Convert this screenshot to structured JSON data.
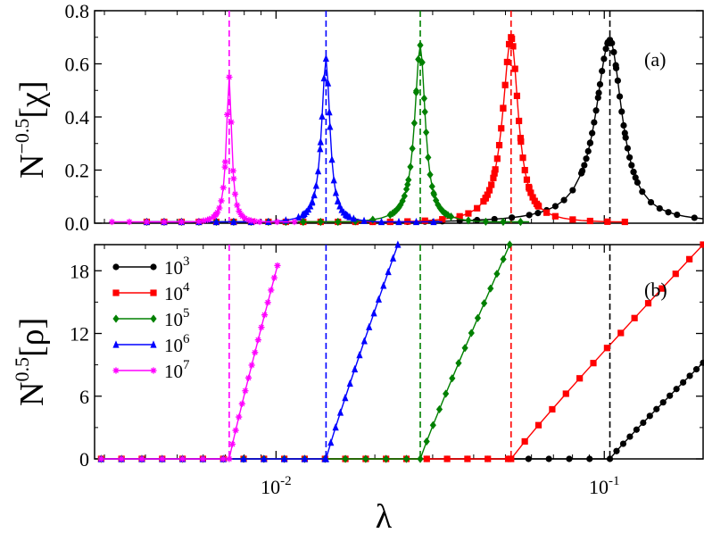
{
  "chart_data": [
    {
      "panel": "top",
      "type": "line",
      "label": "(a)",
      "ylabel_base": "N",
      "ylabel_exp": "−0.5",
      "ylabel_symbol": "[χ]",
      "xlabel": "λ",
      "xscale": "log",
      "xlim": [
        0.0028,
        0.2
      ],
      "ylim": [
        0,
        0.8
      ],
      "yticks": [
        "0.0",
        "0.2",
        "0.4",
        "0.6",
        "0.8"
      ],
      "ytick_values": [
        0,
        0.2,
        0.4,
        0.6,
        0.8
      ],
      "series": [
        {
          "name": "10^3",
          "color": "#000000",
          "marker": "circle",
          "peak_x": 0.104,
          "peak_y": 0.69,
          "width_left": 0.13,
          "width_right": 0.11,
          "critical_line": 0.104
        },
        {
          "name": "10^4",
          "color": "#ff0000",
          "marker": "square",
          "peak_x": 0.052,
          "peak_y": 0.7,
          "width_left": 0.075,
          "width_right": 0.065,
          "critical_line": 0.052
        },
        {
          "name": "10^5",
          "color": "#008000",
          "marker": "diamond",
          "peak_x": 0.0275,
          "peak_y": 0.67,
          "width_left": 0.05,
          "width_right": 0.045,
          "critical_line": 0.0275
        },
        {
          "name": "10^6",
          "color": "#0000ff",
          "marker": "triangle",
          "peak_x": 0.0142,
          "peak_y": 0.62,
          "width_left": 0.04,
          "width_right": 0.035,
          "critical_line": 0.0142
        },
        {
          "name": "10^7",
          "color": "#ff00ff",
          "marker": "star",
          "peak_x": 0.0072,
          "peak_y": 0.55,
          "width_left": 0.025,
          "width_right": 0.022,
          "critical_line": 0.0072
        }
      ]
    },
    {
      "panel": "bottom",
      "type": "line",
      "label": "(b)",
      "ylabel_base": "N",
      "ylabel_exp": "0.5",
      "ylabel_symbol": "[ρ]",
      "xlabel": "λ",
      "xscale": "log",
      "xlim": [
        0.0028,
        0.2
      ],
      "ylim": [
        0,
        20.5
      ],
      "yticks": [
        "0",
        "6",
        "12",
        "18"
      ],
      "ytick_values": [
        0,
        6,
        12,
        18
      ],
      "xticks": [
        {
          "base": "10",
          "exp": "-2",
          "value": 0.01
        },
        {
          "base": "10",
          "exp": "-1",
          "value": 0.1
        }
      ],
      "series": [
        {
          "name": "10^3",
          "base": "10",
          "exp": "3",
          "color": "#000000",
          "marker": "circle",
          "onset": 0.104,
          "end_x": 0.2,
          "end_y": 9.2
        },
        {
          "name": "10^4",
          "base": "10",
          "exp": "4",
          "color": "#ff0000",
          "marker": "square",
          "onset": 0.052,
          "end_x": 0.2,
          "end_y": 20.5
        },
        {
          "name": "10^5",
          "base": "10",
          "exp": "5",
          "color": "#008000",
          "marker": "diamond",
          "onset": 0.0275,
          "end_x": 0.0515,
          "end_y": 20.5
        },
        {
          "name": "10^6",
          "base": "10",
          "exp": "6",
          "color": "#0000ff",
          "marker": "triangle",
          "onset": 0.0142,
          "end_x": 0.0235,
          "end_y": 20.5
        },
        {
          "name": "10^7",
          "base": "10",
          "exp": "7",
          "color": "#ff00ff",
          "marker": "star",
          "onset": 0.0072,
          "end_x": 0.0101,
          "end_y": 18.5
        }
      ]
    }
  ]
}
